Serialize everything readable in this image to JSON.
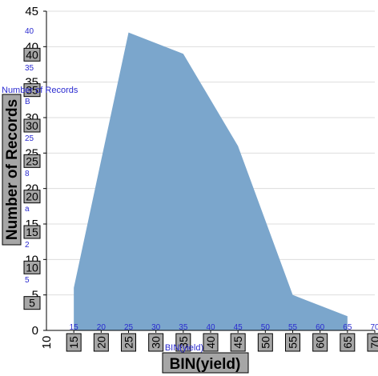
{
  "chart_data": {
    "type": "area",
    "xlabel": "BIN(yield)",
    "ylabel": "Number of Records",
    "x": [
      15,
      25,
      35,
      45,
      55,
      65
    ],
    "values": [
      6,
      42,
      39,
      26,
      5,
      2
    ],
    "xlim": [
      10,
      70
    ],
    "ylim": [
      0,
      45
    ],
    "x_ticks": [
      10,
      15,
      20,
      25,
      30,
      35,
      40,
      45,
      50,
      55,
      60,
      65,
      70
    ],
    "boxed_x_ticks": [
      15,
      20,
      25,
      30,
      35,
      40,
      45,
      50,
      55,
      60,
      65,
      70
    ],
    "y_ticks": [
      0,
      5,
      10,
      15,
      20,
      25,
      30,
      35,
      40,
      45
    ],
    "boxed_y_ticks": [
      5,
      10,
      15,
      20,
      25,
      30,
      35,
      40
    ],
    "grid": true,
    "colors": {
      "area": "#7ba6cc",
      "overlay_text": "#2a2ad0",
      "box_fill": "#a6a6a6",
      "grid": "#dddddd"
    }
  },
  "overlay": {
    "ylabel_text": "Number of Records",
    "xlabel_text": "BIN(yield)",
    "x_numbers": [
      "15",
      "20",
      "25",
      "30",
      "35",
      "40",
      "45",
      "50",
      "55",
      "60",
      "65",
      "70"
    ],
    "y_items": [
      "40",
      "35",
      "B",
      "25",
      "8",
      "a",
      "2",
      "5"
    ]
  }
}
